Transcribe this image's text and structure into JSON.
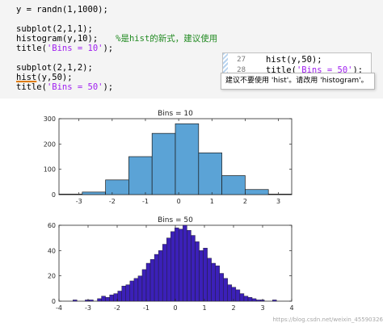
{
  "editor": {
    "lines": [
      {
        "code": "y = randn(1,1000);"
      },
      {
        "code": "subplot(2,1,1);"
      },
      {
        "code": "histogram(y,10);",
        "comment": "%是hist的新式，建议使用"
      },
      {
        "code_before": "title(",
        "str": "'Bins = 10'",
        "code_after": ");"
      },
      {
        "code": "subplot(2,1,2);"
      },
      {
        "code_hl": "hist",
        "code": "(y,50);"
      },
      {
        "code_before": "title(",
        "str": "'Bins = 50'",
        "code_after": ");"
      }
    ],
    "popup": {
      "line1_no": "27",
      "line1_code": "hist(y,50);",
      "line2_no": "28",
      "line2_code_before": "title(",
      "line2_str": "'Bins = 50'",
      "line2_code_after": ");"
    },
    "tooltip": "建议不要使用 'hist'。请改用 'histogram'。"
  },
  "chart_data": [
    {
      "type": "bar",
      "title": "Bins = 10",
      "bin_edges": [
        -3.6,
        -2.9,
        -2.2,
        -1.5,
        -0.8,
        -0.1,
        0.6,
        1.3,
        2.0,
        2.7,
        3.4
      ],
      "values": [
        2,
        10,
        58,
        150,
        242,
        280,
        165,
        75,
        20,
        2
      ],
      "xlim": [
        -3.6,
        3.4
      ],
      "ylim": [
        0,
        300
      ],
      "xticks": [
        -3,
        -2,
        -1,
        0,
        1,
        2,
        3
      ],
      "yticks": [
        0,
        100,
        200,
        300
      ],
      "bar_color": "#5ba3d6",
      "edge_color": "#1c1c1c"
    },
    {
      "type": "bar",
      "title": "Bins = 50",
      "centers_start": -3.45,
      "bin_width": 0.14,
      "values": [
        1,
        0,
        0,
        1,
        1,
        0,
        2,
        4,
        3,
        5,
        6,
        8,
        12,
        13,
        16,
        18,
        20,
        25,
        30,
        33,
        37,
        40,
        45,
        50,
        55,
        58,
        57,
        60,
        56,
        52,
        47,
        40,
        42,
        34,
        30,
        28,
        22,
        18,
        13,
        11,
        9,
        6,
        4,
        3,
        2,
        1,
        1,
        0,
        0,
        1
      ],
      "xlim": [
        -4,
        4
      ],
      "ylim": [
        0,
        60
      ],
      "xticks": [
        -4,
        -3,
        -2,
        -1,
        0,
        1,
        2,
        3,
        4
      ],
      "yticks": [
        0,
        20,
        40,
        60
      ],
      "bar_color": "#3b20b8",
      "edge_color": "#1c1c1c"
    }
  ],
  "watermark": "https://blog.csdn.net/weixin_45590326"
}
